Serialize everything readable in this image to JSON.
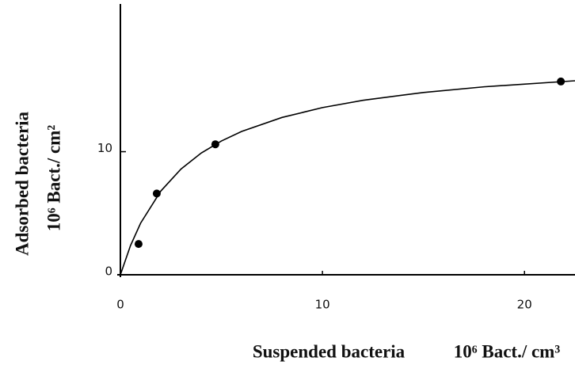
{
  "chart_data": {
    "type": "scatter",
    "x": [
      0.9,
      1.8,
      4.7,
      21.8
    ],
    "values": [
      2.5,
      6.6,
      10.6,
      15.7
    ],
    "color": "#000000",
    "fit": {
      "x": [
        0,
        0.5,
        1,
        2,
        3,
        4,
        5,
        6,
        8,
        10,
        12,
        15,
        18,
        22.5
      ],
      "values": [
        0,
        2.37,
        4.19,
        6.8,
        8.59,
        9.89,
        10.87,
        11.64,
        12.78,
        13.58,
        14.17,
        14.81,
        15.27,
        15.76
      ]
    },
    "xlim": [
      0,
      22.5
    ],
    "ylim": [
      0,
      22
    ],
    "xticks": [
      0,
      10,
      20
    ],
    "yticks": [
      0,
      10
    ],
    "xlabel": "Suspended bacteria",
    "xunit": "10⁶ Bact./ cm³",
    "ylabel": "Adsorbed bacteria",
    "yunit": "10⁶ Bact./ cm²"
  }
}
